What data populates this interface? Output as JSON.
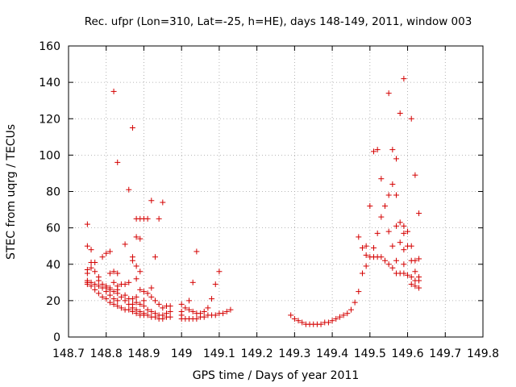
{
  "chart_data": {
    "type": "scatter",
    "title": "Rec. ufpr (Lon=310, Lat=-25, h=HE), days 148-149, 2011, window 003",
    "xlabel": "GPS time / Days of year 2011",
    "ylabel": "STEC from uqrg / TECUs",
    "xlim": [
      148.7,
      149.8
    ],
    "ylim": [
      0,
      160
    ],
    "xticks": [
      148.7,
      148.8,
      148.9,
      149,
      149.1,
      149.2,
      149.3,
      149.4,
      149.5,
      149.6,
      149.7,
      149.8
    ],
    "xtick_labels": [
      "148.7",
      "148.8",
      "148.9",
      "149",
      "149.1",
      "149.2",
      "149.3",
      "149.4",
      "149.5",
      "149.6",
      "149.7",
      "149.8"
    ],
    "yticks": [
      0,
      20,
      40,
      60,
      80,
      100,
      120,
      140,
      160
    ],
    "ytick_labels": [
      "0",
      "20",
      "40",
      "60",
      "80",
      "100",
      "120",
      "140",
      "160"
    ],
    "grid": true,
    "marker": "+",
    "marker_color": "#d40000",
    "series": [
      {
        "name": "STEC",
        "points": [
          [
            148.75,
            62
          ],
          [
            148.75,
            50
          ],
          [
            148.75,
            37
          ],
          [
            148.75,
            35
          ],
          [
            148.75,
            31
          ],
          [
            148.75,
            30
          ],
          [
            148.75,
            29
          ],
          [
            148.76,
            48
          ],
          [
            148.76,
            41
          ],
          [
            148.76,
            38
          ],
          [
            148.76,
            30
          ],
          [
            148.76,
            28
          ],
          [
            148.77,
            41
          ],
          [
            148.77,
            36
          ],
          [
            148.77,
            29
          ],
          [
            148.77,
            26
          ],
          [
            148.78,
            33
          ],
          [
            148.78,
            31
          ],
          [
            148.78,
            28
          ],
          [
            148.78,
            24
          ],
          [
            148.79,
            44
          ],
          [
            148.79,
            29
          ],
          [
            148.79,
            27
          ],
          [
            148.79,
            22
          ],
          [
            148.8,
            46
          ],
          [
            148.8,
            28
          ],
          [
            148.8,
            27
          ],
          [
            148.8,
            25
          ],
          [
            148.8,
            21
          ],
          [
            148.81,
            47
          ],
          [
            148.81,
            35
          ],
          [
            148.81,
            27
          ],
          [
            148.81,
            26
          ],
          [
            148.81,
            23
          ],
          [
            148.81,
            19
          ],
          [
            148.82,
            135
          ],
          [
            148.82,
            36
          ],
          [
            148.82,
            30
          ],
          [
            148.82,
            25
          ],
          [
            148.82,
            21
          ],
          [
            148.82,
            18
          ],
          [
            148.83,
            96
          ],
          [
            148.83,
            35
          ],
          [
            148.83,
            28
          ],
          [
            148.83,
            26
          ],
          [
            148.83,
            24
          ],
          [
            148.83,
            20
          ],
          [
            148.83,
            17
          ],
          [
            148.84,
            29
          ],
          [
            148.84,
            22
          ],
          [
            148.84,
            16
          ],
          [
            148.85,
            51
          ],
          [
            148.85,
            29
          ],
          [
            148.85,
            23
          ],
          [
            148.85,
            20
          ],
          [
            148.85,
            15
          ],
          [
            148.86,
            81
          ],
          [
            148.86,
            30
          ],
          [
            148.86,
            21
          ],
          [
            148.86,
            18
          ],
          [
            148.86,
            15
          ],
          [
            148.87,
            115
          ],
          [
            148.87,
            44
          ],
          [
            148.87,
            42
          ],
          [
            148.87,
            21
          ],
          [
            148.87,
            18
          ],
          [
            148.87,
            16
          ],
          [
            148.87,
            14
          ],
          [
            148.88,
            65
          ],
          [
            148.88,
            55
          ],
          [
            148.88,
            39
          ],
          [
            148.88,
            32
          ],
          [
            148.88,
            22
          ],
          [
            148.88,
            19
          ],
          [
            148.88,
            15
          ],
          [
            148.88,
            13
          ],
          [
            148.89,
            65
          ],
          [
            148.89,
            54
          ],
          [
            148.89,
            36
          ],
          [
            148.89,
            26
          ],
          [
            148.89,
            18
          ],
          [
            148.89,
            14
          ],
          [
            148.89,
            12
          ],
          [
            148.9,
            65
          ],
          [
            148.9,
            25
          ],
          [
            148.9,
            20
          ],
          [
            148.9,
            17
          ],
          [
            148.9,
            13
          ],
          [
            148.9,
            12
          ],
          [
            148.91,
            65
          ],
          [
            148.91,
            24
          ],
          [
            148.91,
            15
          ],
          [
            148.91,
            12
          ],
          [
            148.92,
            75
          ],
          [
            148.92,
            27
          ],
          [
            148.92,
            22
          ],
          [
            148.92,
            14
          ],
          [
            148.92,
            11
          ],
          [
            148.93,
            44
          ],
          [
            148.93,
            20
          ],
          [
            148.93,
            13
          ],
          [
            148.93,
            11
          ],
          [
            148.94,
            65
          ],
          [
            148.94,
            18
          ],
          [
            148.94,
            12
          ],
          [
            148.94,
            10
          ],
          [
            148.95,
            74
          ],
          [
            148.95,
            16
          ],
          [
            148.95,
            12
          ],
          [
            148.95,
            10
          ],
          [
            148.96,
            17
          ],
          [
            148.96,
            13
          ],
          [
            148.96,
            11
          ],
          [
            148.97,
            17
          ],
          [
            148.97,
            14
          ],
          [
            148.97,
            11
          ],
          [
            149.0,
            18
          ],
          [
            149.0,
            14
          ],
          [
            149.0,
            12
          ],
          [
            149.0,
            10
          ],
          [
            149.01,
            16
          ],
          [
            149.01,
            10
          ],
          [
            149.02,
            20
          ],
          [
            149.02,
            15
          ],
          [
            149.02,
            10
          ],
          [
            149.03,
            30
          ],
          [
            149.03,
            14
          ],
          [
            149.03,
            10
          ],
          [
            149.04,
            47
          ],
          [
            149.04,
            13
          ],
          [
            149.04,
            10
          ],
          [
            149.05,
            13
          ],
          [
            149.05,
            11
          ],
          [
            149.06,
            14
          ],
          [
            149.06,
            11
          ],
          [
            149.07,
            16
          ],
          [
            149.07,
            12
          ],
          [
            149.08,
            21
          ],
          [
            149.08,
            12
          ],
          [
            149.09,
            29
          ],
          [
            149.09,
            12
          ],
          [
            149.1,
            36
          ],
          [
            149.1,
            13
          ],
          [
            149.11,
            13
          ],
          [
            149.12,
            14
          ],
          [
            149.13,
            15
          ],
          [
            149.29,
            12
          ],
          [
            149.3,
            10
          ],
          [
            149.31,
            9
          ],
          [
            149.32,
            8
          ],
          [
            149.33,
            7
          ],
          [
            149.34,
            7
          ],
          [
            149.35,
            7
          ],
          [
            149.36,
            7
          ],
          [
            149.37,
            7
          ],
          [
            149.38,
            8
          ],
          [
            149.39,
            8
          ],
          [
            149.4,
            9
          ],
          [
            149.41,
            10
          ],
          [
            149.42,
            11
          ],
          [
            149.43,
            12
          ],
          [
            149.44,
            13
          ],
          [
            149.45,
            15
          ],
          [
            149.46,
            19
          ],
          [
            149.47,
            25
          ],
          [
            149.47,
            55
          ],
          [
            149.48,
            35
          ],
          [
            149.48,
            49
          ],
          [
            149.49,
            50
          ],
          [
            149.49,
            45
          ],
          [
            149.49,
            39
          ],
          [
            149.5,
            72
          ],
          [
            149.5,
            44
          ],
          [
            149.51,
            102
          ],
          [
            149.51,
            49
          ],
          [
            149.51,
            44
          ],
          [
            149.52,
            103
          ],
          [
            149.52,
            57
          ],
          [
            149.52,
            44
          ],
          [
            149.53,
            87
          ],
          [
            149.53,
            66
          ],
          [
            149.53,
            44
          ],
          [
            149.54,
            72
          ],
          [
            149.54,
            42
          ],
          [
            149.55,
            134
          ],
          [
            149.55,
            78
          ],
          [
            149.55,
            58
          ],
          [
            149.55,
            40
          ],
          [
            149.56,
            103
          ],
          [
            149.56,
            84
          ],
          [
            149.56,
            50
          ],
          [
            149.56,
            38
          ],
          [
            149.57,
            98
          ],
          [
            149.57,
            78
          ],
          [
            149.57,
            61
          ],
          [
            149.57,
            42
          ],
          [
            149.57,
            35
          ],
          [
            149.58,
            123
          ],
          [
            149.58,
            63
          ],
          [
            149.58,
            52
          ],
          [
            149.58,
            35
          ],
          [
            149.59,
            142
          ],
          [
            149.59,
            61
          ],
          [
            149.59,
            57
          ],
          [
            149.59,
            48
          ],
          [
            149.59,
            40
          ],
          [
            149.59,
            35
          ],
          [
            149.6,
            58
          ],
          [
            149.6,
            50
          ],
          [
            149.6,
            34
          ],
          [
            149.61,
            120
          ],
          [
            149.61,
            50
          ],
          [
            149.61,
            42
          ],
          [
            149.61,
            33
          ],
          [
            149.61,
            29
          ],
          [
            149.62,
            89
          ],
          [
            149.62,
            42
          ],
          [
            149.62,
            36
          ],
          [
            149.62,
            31
          ],
          [
            149.62,
            28
          ],
          [
            149.63,
            68
          ],
          [
            149.63,
            43
          ],
          [
            149.63,
            33
          ],
          [
            149.63,
            31
          ],
          [
            149.63,
            27
          ]
        ]
      }
    ]
  }
}
